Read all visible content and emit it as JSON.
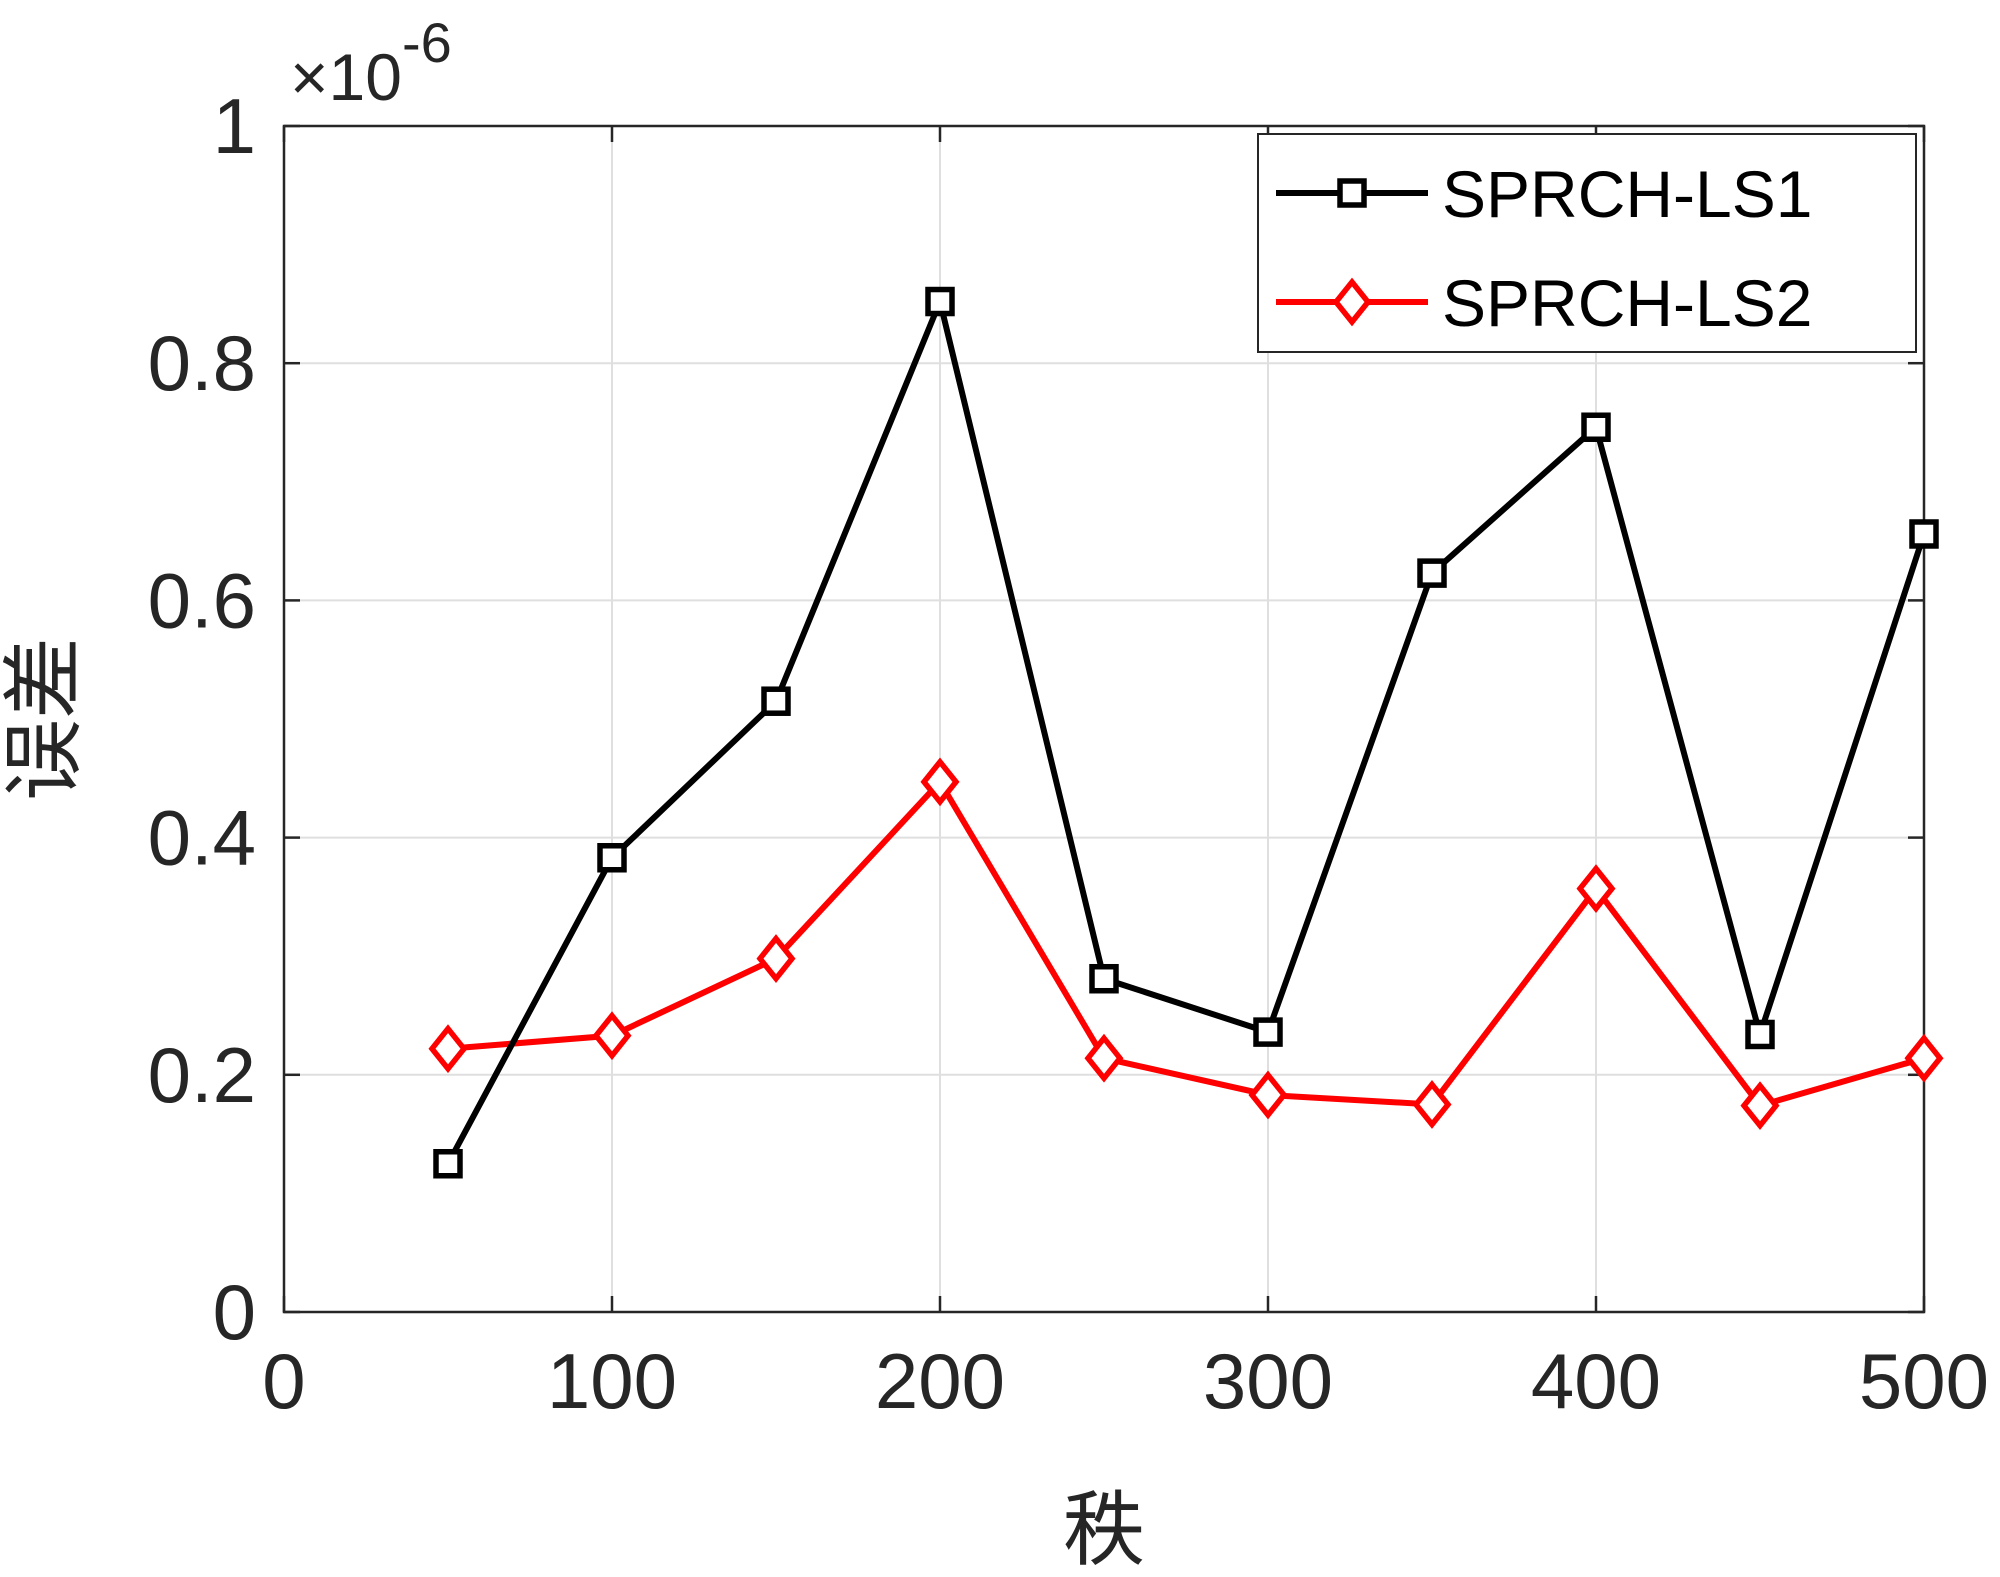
{
  "chart_data": {
    "type": "line",
    "xlabel": "秩",
    "ylabel": "误差",
    "exponent_base": "×10",
    "exponent_power": "-6",
    "xlim": [
      0,
      500
    ],
    "ylim": [
      0,
      1
    ],
    "x_ticks": [
      "0",
      "100",
      "200",
      "300",
      "400",
      "500"
    ],
    "y_ticks": [
      "0",
      "0.2",
      "0.4",
      "0.6",
      "0.8",
      "1"
    ],
    "grid": true,
    "legend_position": "top-right",
    "x": [
      50,
      100,
      150,
      200,
      250,
      300,
      350,
      400,
      450,
      500
    ],
    "series": [
      {
        "name": "SPRCH-LS1",
        "color": "#000000",
        "marker": "square",
        "values": [
          0.125,
          0.383,
          0.515,
          0.852,
          0.281,
          0.236,
          0.623,
          0.746,
          0.234,
          0.656
        ]
      },
      {
        "name": "SPRCH-LS2",
        "color": "#ff0000",
        "marker": "diamond",
        "values": [
          0.222,
          0.233,
          0.298,
          0.447,
          0.214,
          0.183,
          0.175,
          0.357,
          0.174,
          0.214
        ]
      }
    ]
  }
}
